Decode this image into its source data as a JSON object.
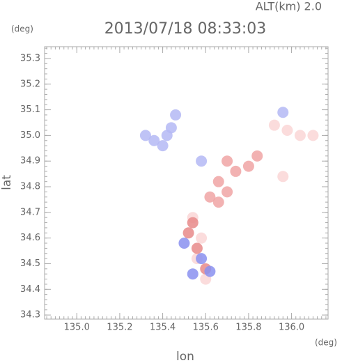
{
  "chart_data": {
    "type": "scatter",
    "title": "2013/07/18 08:33:03",
    "subtitle": "ALT(km) 2.0",
    "x_label": "lon",
    "y_label": "lat",
    "x_unit": "(deg)",
    "y_unit": "(deg)",
    "xlim": [
      134.85,
      136.17
    ],
    "ylim": [
      34.284,
      35.346
    ],
    "xticks": [
      {
        "value": 135.0,
        "label": "135.0"
      },
      135.2,
      135.4,
      135.6,
      135.8,
      {
        "value": 136.0,
        "label": "136.0"
      }
    ],
    "yticks": [
      34.3,
      34.4,
      34.5,
      34.6,
      34.7,
      34.8,
      34.9,
      {
        "value": 35.0,
        "label": "35.0"
      },
      35.1,
      35.2,
      35.3
    ],
    "series": [
      {
        "color": "#b4b8f4",
        "x": [
          135.32,
          135.36,
          135.4,
          135.44,
          135.46,
          135.42,
          135.58,
          135.96
        ],
        "y": [
          35.0,
          34.98,
          34.96,
          35.03,
          35.08,
          35.0,
          34.9,
          35.09
        ]
      },
      {
        "color": "#f0a4a4",
        "x": [
          135.62,
          135.66,
          135.7,
          135.66,
          135.74,
          135.8,
          135.84,
          135.7
        ],
        "y": [
          34.76,
          34.74,
          34.78,
          34.82,
          34.86,
          34.88,
          34.92,
          34.9
        ]
      },
      {
        "color": "#fad6d6",
        "x": [
          135.92,
          135.98,
          136.04,
          136.1,
          135.96,
          135.54,
          135.58,
          135.56,
          135.6
        ],
        "y": [
          35.04,
          35.02,
          35.0,
          35.0,
          34.84,
          34.68,
          34.6,
          34.52,
          34.44
        ]
      },
      {
        "color": "#e88a8a",
        "x": [
          135.52,
          135.56,
          135.6,
          135.54
        ],
        "y": [
          34.62,
          34.56,
          34.48,
          34.66
        ]
      },
      {
        "color": "#8a90f0",
        "x": [
          135.5,
          135.58,
          135.54,
          135.62
        ],
        "y": [
          34.58,
          34.52,
          34.46,
          34.47
        ]
      }
    ]
  }
}
